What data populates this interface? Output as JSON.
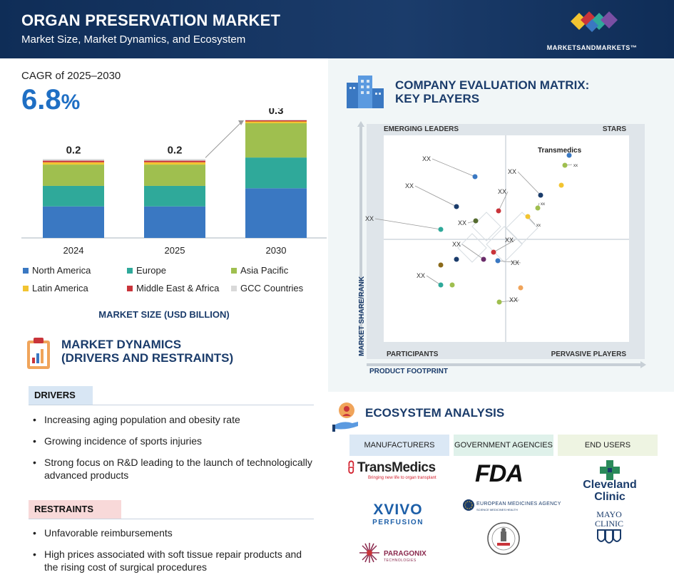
{
  "header": {
    "title": "ORGAN PRESERVATION MARKET",
    "subtitle": "Market Size, Market Dynamics, and Ecosystem",
    "brand": "MARKETSANDMARKETS™"
  },
  "cagr": {
    "label": "CAGR of 2025–2030",
    "value": "6.8",
    "unit": "%"
  },
  "chart_data": {
    "type": "bar",
    "stacked": true,
    "categories": [
      "2024",
      "2025",
      "2030"
    ],
    "totals_labels": [
      "0.2",
      "0.2",
      "0.3"
    ],
    "totals": [
      0.2,
      0.2,
      0.3
    ],
    "series": [
      {
        "name": "North America",
        "color": "#3a78c2",
        "share": [
          0.4,
          0.4,
          0.42
        ]
      },
      {
        "name": "Europe",
        "color": "#2fa99a",
        "share": [
          0.26,
          0.26,
          0.26
        ]
      },
      {
        "name": "Asia Pacific",
        "color": "#9fbf4f",
        "share": [
          0.27,
          0.27,
          0.29
        ]
      },
      {
        "name": "Latin America",
        "color": "#f2c431",
        "share": [
          0.03,
          0.03,
          0.015
        ]
      },
      {
        "name": "Middle East & Africa",
        "color": "#c9343a",
        "share": [
          0.02,
          0.02,
          0.01
        ]
      },
      {
        "name": "GCC Countries",
        "color": "#d9d9d9",
        "share": [
          0.02,
          0.02,
          0.005
        ]
      }
    ],
    "xlabel": "MARKET SIZE (USD BILLION)"
  },
  "dynamics": {
    "title_line1": "MARKET DYNAMICS",
    "title_line2": "(DRIVERS AND RESTRAINTS)",
    "drivers_label": "DRIVERS",
    "drivers": [
      "Increasing aging population and obesity rate",
      "Growing incidence of sports injuries",
      "Strong focus on R&D leading to the launch of technologically advanced products"
    ],
    "restraints_label": "RESTRAINTS",
    "restraints": [
      "Unfavorable reimbursements",
      "High prices associated with soft tissue repair products and the rising cost of surgical procedures"
    ]
  },
  "matrix": {
    "title_line1": "COMPANY EVALUATION MATRIX:",
    "title_line2": "KEY PLAYERS",
    "quadrants": {
      "top_left": "EMERGING LEADERS",
      "top_right": "STARS",
      "bottom_left": "PARTICIPANTS",
      "bottom_right": "PERVASIVE PLAYERS"
    },
    "y_axis": "MARKET SHARE/RANK",
    "x_axis": "PRODUCT FOOTPRINT",
    "named_company": "Transmedics",
    "placeholder_label": "XX",
    "small_label": "xx"
  },
  "ecosystem": {
    "title": "ECOSYSTEM ANALYSIS",
    "columns": [
      "MANUFACTURERS",
      "GOVERNMENT AGENCIES",
      "END USERS"
    ],
    "manufacturers": {
      "transmedics": "TransMedics",
      "transmedics_tag": "Bringing new life to organ transplant",
      "xvivo": "XVIVO",
      "xvivo_sub": "PERFUSION",
      "paragonix": "PARAGONIX",
      "paragonix_sub": "TECHNOLOGIES"
    },
    "agencies": {
      "fda": "FDA",
      "ema": "EUROPEAN MEDICINES AGENCY",
      "ema_sub": "SCIENCE MEDICINES HEALTH"
    },
    "end_users": {
      "cleveland": "Cleveland Clinic",
      "mayo": "MAYO CLINIC"
    }
  }
}
